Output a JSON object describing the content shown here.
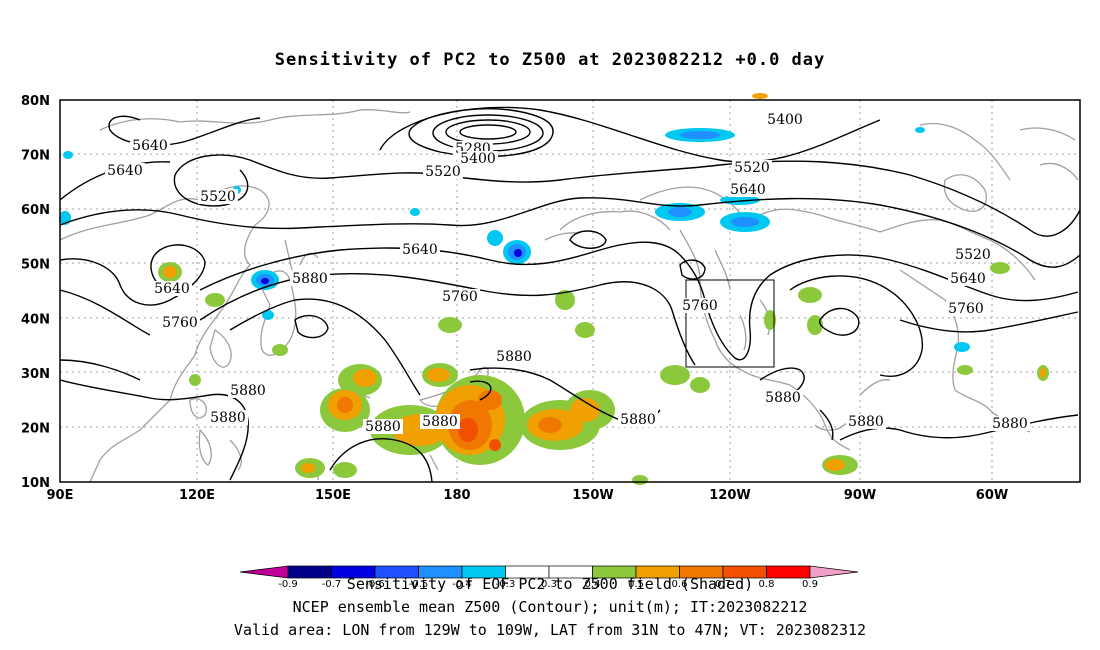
{
  "title": "Sensitivity of PC2 to Z500 at 2023082212 +0.0 day",
  "lat_labels": [
    "80N",
    "70N",
    "60N",
    "50N",
    "40N",
    "30N",
    "20N",
    "10N"
  ],
  "lon_labels": [
    "90E",
    "120E",
    "150E",
    "180",
    "150W",
    "120W",
    "90W",
    "60W"
  ],
  "contour_labels": [
    {
      "text": "5280"
    },
    {
      "text": "5400"
    },
    {
      "text": "5400"
    },
    {
      "text": "5520"
    },
    {
      "text": "5520"
    },
    {
      "text": "5520"
    },
    {
      "text": "5520"
    },
    {
      "text": "5640"
    },
    {
      "text": "5640"
    },
    {
      "text": "5640"
    },
    {
      "text": "5640"
    },
    {
      "text": "5640"
    },
    {
      "text": "5640"
    },
    {
      "text": "5760"
    },
    {
      "text": "5760"
    },
    {
      "text": "5760"
    },
    {
      "text": "5760"
    },
    {
      "text": "5880"
    },
    {
      "text": "5880"
    },
    {
      "text": "5880"
    },
    {
      "text": "5880"
    },
    {
      "text": "5880"
    },
    {
      "text": "5880"
    },
    {
      "text": "5880"
    },
    {
      "text": "5880"
    },
    {
      "text": "5880"
    },
    {
      "text": "5880"
    }
  ],
  "colorbar": {
    "colors": [
      "#c00099",
      "#00008b",
      "#0000e0",
      "#1e50ff",
      "#1e90ff",
      "#00c8f0",
      "#ffffff",
      "#ffffff",
      "#8cc83c",
      "#f0a000",
      "#f07800",
      "#f05000",
      "#ff0000",
      "#f0a0c8"
    ],
    "ticks": [
      "-0.9",
      "-0.7",
      "-0.6",
      "-0.5",
      "-0.4",
      "-0.3",
      "0.3",
      "0.4",
      "0.5",
      "0.6",
      "0.7",
      "0.8",
      "0.9"
    ]
  },
  "captions": {
    "line1": "Sensitivity of EOF PC2 to Z500 field (Shaded)",
    "line2": "NCEP ensemble mean Z500 (Contour); unit(m); IT:2023082212",
    "line3": "Valid area: LON from 129W to 109W, LAT from 31N to 47N; VT: 2023082312"
  },
  "colors": {
    "contour": "#000000",
    "coast": "#a0a0a0",
    "grid": "#a0a0a0"
  }
}
